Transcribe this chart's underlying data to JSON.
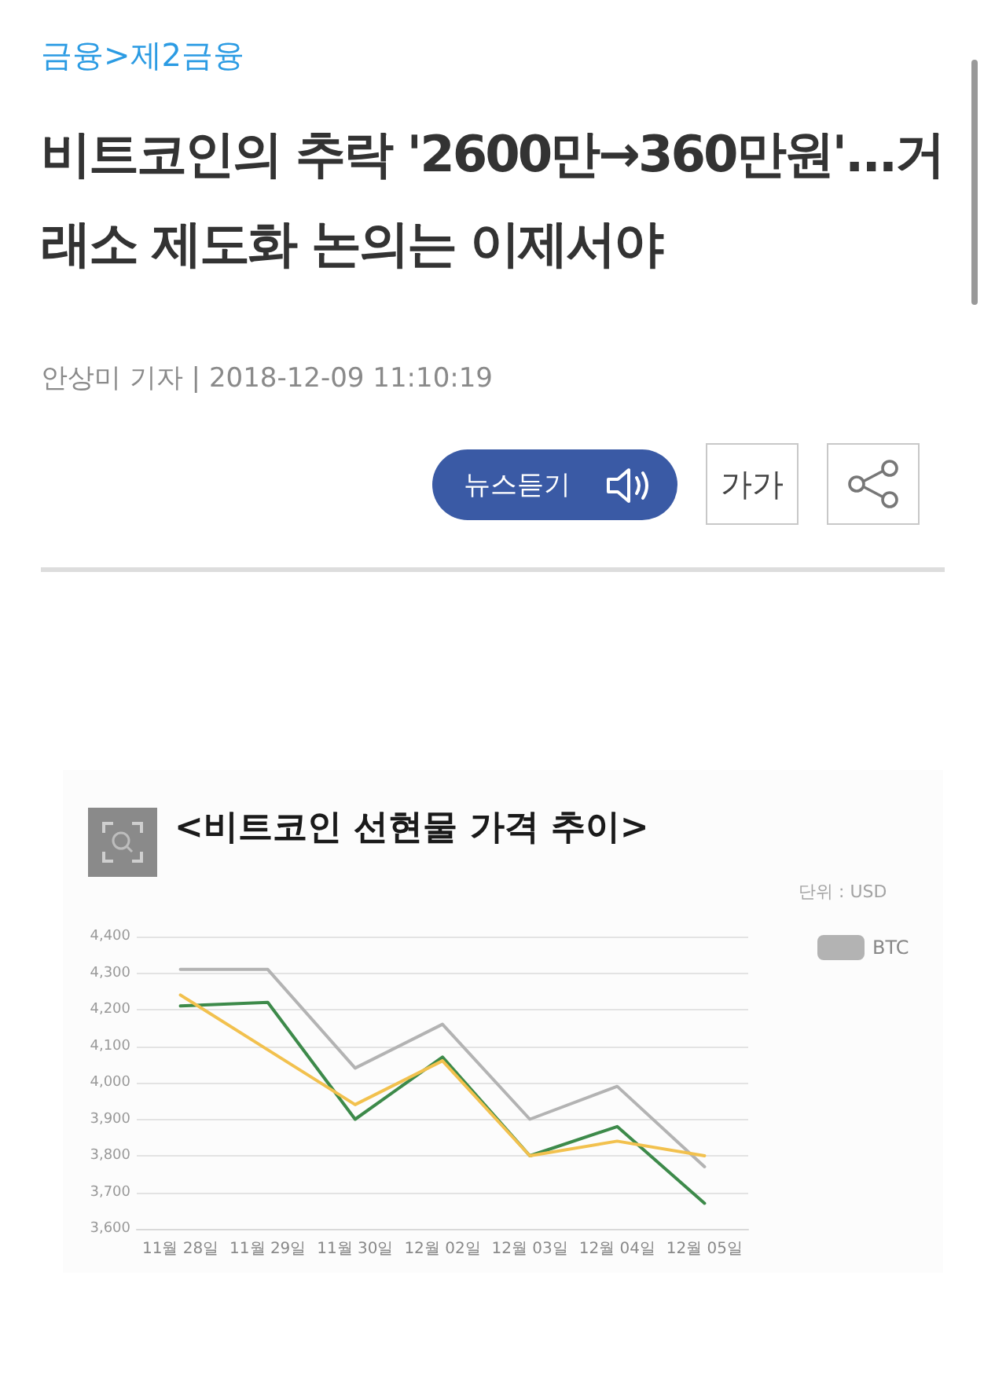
{
  "chart_data": {
    "type": "line",
    "title": "<비트코인 선현물 가격 추이>",
    "annotations": [
      "금융>제2금융",
      "비트코인의 추락 '2600만→360만원'...거래소 제도화 논의는 이제서야",
      "안상미 기자 | 2018-12-09 11:10:19",
      "뉴스듣기",
      "가가",
      "단위 : USD"
    ],
    "categories": [
      "11월 28일",
      "11월 29일",
      "11월 30일",
      "12월 02일",
      "12월 03일",
      "12월 04일",
      "12월 05일"
    ],
    "series": [
      {
        "name": "BTC",
        "color": "#b3b3b3",
        "values": [
          4310,
          4310,
          4040,
          4160,
          3900,
          3990,
          3770
        ]
      },
      {
        "color": "#3d8a4a",
        "values": [
          4210,
          4220,
          3900,
          4070,
          3800,
          3880,
          3670
        ]
      },
      {
        "color": "#f2c14e",
        "values": [
          4240,
          4090,
          3940,
          4060,
          3800,
          3840,
          3800
        ]
      }
    ],
    "ylim": [
      3600,
      4400
    ],
    "yticks": [
      {
        "value": 3600,
        "label": "3,600"
      },
      {
        "value": 3700,
        "label": "3,700"
      },
      {
        "value": 3800,
        "label": "3,800"
      },
      {
        "value": 3900,
        "label": "3,900"
      },
      {
        "value": 4000,
        "label": "4,000"
      },
      {
        "value": 4100,
        "label": "4,100"
      },
      {
        "value": 4200,
        "label": "4,200"
      },
      {
        "value": 4300,
        "label": "4,300"
      },
      {
        "value": 4400,
        "label": "4,400"
      }
    ],
    "grid": "y",
    "legend": "right",
    "marker": "none",
    "line_style": "solid"
  }
}
